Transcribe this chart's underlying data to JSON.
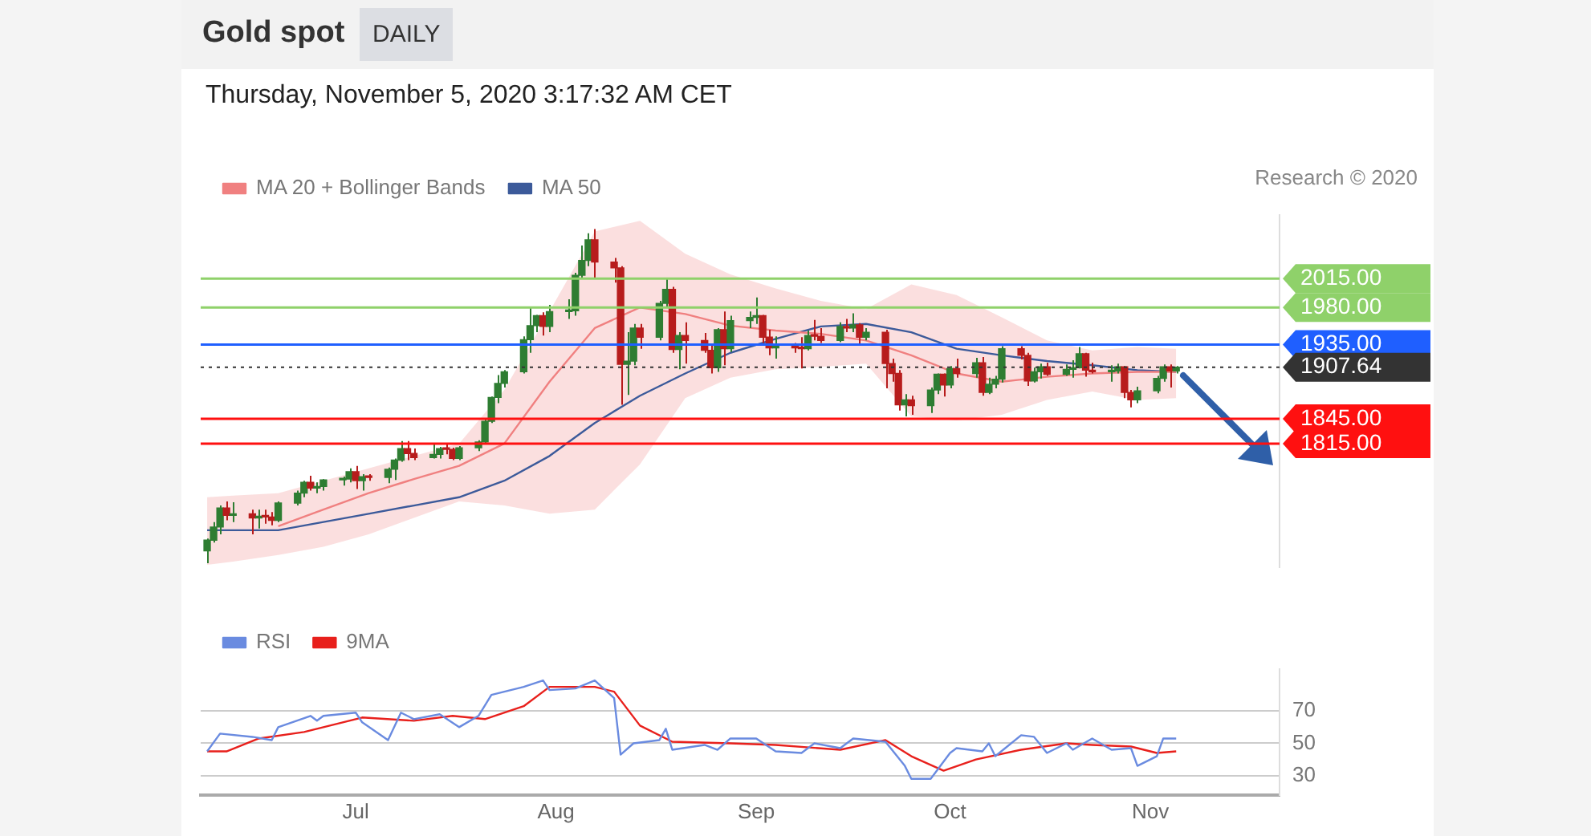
{
  "chart_data": [
    {
      "type": "candlestick",
      "title": "Gold spot",
      "subtitle": "DAILY",
      "annotations": [
        "Thursday, November 5, 2020 3:17:32 AM CET",
        "Research © 2020"
      ],
      "legend": "top left",
      "tick_labels": "y",
      "marker": "none",
      "yticks": [
        {
          "value": 2015,
          "label": "2015.00"
        },
        {
          "value": 1980,
          "label": "1980.00"
        },
        {
          "value": 1935,
          "label": "1935.00"
        },
        {
          "value": 1907.64,
          "label": "1907.64"
        },
        {
          "value": 1845,
          "label": "1845.00"
        },
        {
          "value": 1815,
          "label": "1815.00"
        }
      ],
      "xlim": [
        "2020-06-07",
        "2020-11-21"
      ],
      "ylim": [
        1665,
        2092
      ],
      "x": [
        "2020-06-08",
        "2020-06-09",
        "2020-06-10",
        "2020-06-11",
        "2020-06-12",
        "2020-06-15",
        "2020-06-16",
        "2020-06-17",
        "2020-06-18",
        "2020-06-19",
        "2020-06-22",
        "2020-06-23",
        "2020-06-24",
        "2020-06-25",
        "2020-06-26",
        "2020-06-29",
        "2020-06-30",
        "2020-07-01",
        "2020-07-02",
        "2020-07-03",
        "2020-07-06",
        "2020-07-07",
        "2020-07-08",
        "2020-07-09",
        "2020-07-10",
        "2020-07-13",
        "2020-07-14",
        "2020-07-15",
        "2020-07-16",
        "2020-07-17",
        "2020-07-20",
        "2020-07-21",
        "2020-07-22",
        "2020-07-23",
        "2020-07-24",
        "2020-07-27",
        "2020-07-28",
        "2020-07-29",
        "2020-07-30",
        "2020-07-31",
        "2020-08-03",
        "2020-08-04",
        "2020-08-05",
        "2020-08-06",
        "2020-08-07",
        "2020-08-10",
        "2020-08-11",
        "2020-08-12",
        "2020-08-13",
        "2020-08-14",
        "2020-08-17",
        "2020-08-18",
        "2020-08-19",
        "2020-08-20",
        "2020-08-21",
        "2020-08-24",
        "2020-08-25",
        "2020-08-26",
        "2020-08-27",
        "2020-08-28",
        "2020-08-31",
        "2020-09-01",
        "2020-09-02",
        "2020-09-03",
        "2020-09-04",
        "2020-09-07",
        "2020-09-08",
        "2020-09-09",
        "2020-09-10",
        "2020-09-11",
        "2020-09-14",
        "2020-09-15",
        "2020-09-16",
        "2020-09-17",
        "2020-09-18",
        "2020-09-21",
        "2020-09-22",
        "2020-09-23",
        "2020-09-24",
        "2020-09-25",
        "2020-09-28",
        "2020-09-29",
        "2020-09-30",
        "2020-10-01",
        "2020-10-02",
        "2020-10-05",
        "2020-10-06",
        "2020-10-07",
        "2020-10-08",
        "2020-10-09",
        "2020-10-12",
        "2020-10-13",
        "2020-10-14",
        "2020-10-15",
        "2020-10-16",
        "2020-10-19",
        "2020-10-20",
        "2020-10-21",
        "2020-10-22",
        "2020-10-23",
        "2020-10-26",
        "2020-10-27",
        "2020-10-28",
        "2020-10-29",
        "2020-10-30",
        "2020-11-02",
        "2020-11-03",
        "2020-11-04",
        "2020-11-05"
      ],
      "ohlc": [
        [
          1685,
          1700,
          1670,
          1698
        ],
        [
          1698,
          1720,
          1695,
          1714
        ],
        [
          1714,
          1740,
          1705,
          1737
        ],
        [
          1737,
          1745,
          1722,
          1728
        ],
        [
          1728,
          1744,
          1720,
          1730
        ],
        [
          1730,
          1735,
          1705,
          1725
        ],
        [
          1725,
          1735,
          1712,
          1727
        ],
        [
          1727,
          1735,
          1718,
          1726
        ],
        [
          1726,
          1732,
          1716,
          1722
        ],
        [
          1722,
          1745,
          1720,
          1743
        ],
        [
          1743,
          1758,
          1740,
          1755
        ],
        [
          1755,
          1770,
          1750,
          1768
        ],
        [
          1768,
          1776,
          1758,
          1761
        ],
        [
          1761,
          1768,
          1755,
          1763
        ],
        [
          1763,
          1772,
          1758,
          1771
        ],
        [
          1771,
          1775,
          1764,
          1772
        ],
        [
          1772,
          1785,
          1768,
          1781
        ],
        [
          1781,
          1788,
          1760,
          1770
        ],
        [
          1770,
          1778,
          1758,
          1775
        ],
        [
          1775,
          1778,
          1770,
          1774
        ],
        [
          1774,
          1786,
          1767,
          1784
        ],
        [
          1784,
          1797,
          1771,
          1795
        ],
        [
          1795,
          1818,
          1793,
          1809
        ],
        [
          1809,
          1818,
          1795,
          1803
        ],
        [
          1803,
          1809,
          1795,
          1798
        ],
        [
          1798,
          1815,
          1797,
          1802
        ],
        [
          1802,
          1811,
          1797,
          1809
        ],
        [
          1809,
          1814,
          1802,
          1808
        ],
        [
          1808,
          1810,
          1795,
          1797
        ],
        [
          1797,
          1812,
          1795,
          1810
        ],
        [
          1810,
          1819,
          1806,
          1817
        ],
        [
          1817,
          1844,
          1815,
          1842
        ],
        [
          1842,
          1872,
          1840,
          1871
        ],
        [
          1871,
          1898,
          1864,
          1888
        ],
        [
          1888,
          1904,
          1883,
          1902
        ],
        [
          1902,
          1945,
          1900,
          1941
        ],
        [
          1941,
          1981,
          1925,
          1958
        ],
        [
          1958,
          1971,
          1950,
          1970
        ],
        [
          1970,
          1974,
          1946,
          1957
        ],
        [
          1957,
          1983,
          1950,
          1975
        ],
        [
          1975,
          1990,
          1966,
          1976
        ],
        [
          1976,
          2022,
          1970,
          2019
        ],
        [
          2019,
          2055,
          2015,
          2037
        ],
        [
          2037,
          2070,
          2030,
          2062
        ],
        [
          2062,
          2075,
          2015,
          2035
        ],
        [
          2035,
          2040,
          2010,
          2028
        ],
        [
          2028,
          2030,
          1862,
          1911
        ],
        [
          1911,
          1950,
          1874,
          1915
        ],
        [
          1915,
          1960,
          1910,
          1955
        ],
        [
          1955,
          1960,
          1930,
          1944
        ],
        [
          1944,
          1988,
          1940,
          1985
        ],
        [
          1985,
          2015,
          1980,
          2002
        ],
        [
          2002,
          2005,
          1925,
          1929
        ],
        [
          1929,
          1950,
          1905,
          1946
        ],
        [
          1946,
          1962,
          1912,
          1940
        ],
        [
          1940,
          1949,
          1925,
          1928
        ],
        [
          1928,
          1935,
          1900,
          1907
        ],
        [
          1907,
          1955,
          1902,
          1953
        ],
        [
          1953,
          1975,
          1910,
          1930
        ],
        [
          1930,
          1970,
          1926,
          1964
        ],
        [
          1964,
          1975,
          1955,
          1968
        ],
        [
          1968,
          1992,
          1960,
          1970
        ],
        [
          1970,
          1971,
          1937,
          1944
        ],
        [
          1944,
          1953,
          1922,
          1931
        ],
        [
          1931,
          1945,
          1918,
          1934
        ],
        [
          1934,
          1937,
          1925,
          1931
        ],
        [
          1931,
          1944,
          1906,
          1930
        ],
        [
          1930,
          1952,
          1928,
          1946
        ],
        [
          1946,
          1965,
          1940,
          1945
        ],
        [
          1945,
          1955,
          1937,
          1940
        ],
        [
          1940,
          1962,
          1938,
          1957
        ],
        [
          1957,
          1966,
          1950,
          1955
        ],
        [
          1955,
          1973,
          1950,
          1959
        ],
        [
          1959,
          1961,
          1935,
          1944
        ],
        [
          1944,
          1955,
          1940,
          1950
        ],
        [
          1950,
          1953,
          1882,
          1912
        ],
        [
          1912,
          1918,
          1890,
          1900
        ],
        [
          1900,
          1904,
          1855,
          1862
        ],
        [
          1862,
          1875,
          1848,
          1868
        ],
        [
          1868,
          1873,
          1850,
          1861
        ],
        [
          1861,
          1883,
          1852,
          1880
        ],
        [
          1880,
          1900,
          1875,
          1899
        ],
        [
          1899,
          1900,
          1872,
          1886
        ],
        [
          1886,
          1909,
          1882,
          1906
        ],
        [
          1906,
          1918,
          1895,
          1900
        ],
        [
          1900,
          1919,
          1895,
          1913
        ],
        [
          1913,
          1920,
          1873,
          1877
        ],
        [
          1877,
          1895,
          1875,
          1887
        ],
        [
          1887,
          1897,
          1882,
          1893
        ],
        [
          1893,
          1933,
          1889,
          1930
        ],
        [
          1930,
          1933,
          1917,
          1922
        ],
        [
          1922,
          1925,
          1885,
          1891
        ],
        [
          1891,
          1907,
          1889,
          1902
        ],
        [
          1902,
          1912,
          1894,
          1908
        ],
        [
          1908,
          1913,
          1897,
          1899
        ],
        [
          1899,
          1911,
          1897,
          1905
        ],
        [
          1905,
          1916,
          1895,
          1907
        ],
        [
          1907,
          1932,
          1906,
          1924
        ],
        [
          1924,
          1925,
          1896,
          1904
        ],
        [
          1904,
          1913,
          1900,
          1902
        ],
        [
          1902,
          1910,
          1890,
          1903
        ],
        [
          1903,
          1912,
          1900,
          1908
        ],
        [
          1908,
          1909,
          1870,
          1877
        ],
        [
          1877,
          1880,
          1859,
          1868
        ],
        [
          1868,
          1884,
          1864,
          1879
        ],
        [
          1879,
          1897,
          1876,
          1894
        ],
        [
          1894,
          1911,
          1890,
          1908
        ],
        [
          1908,
          1911,
          1883,
          1903
        ],
        [
          1903,
          1909,
          1900,
          1907.64
        ]
      ],
      "colors": [
        "#2e7d32",
        "#2e7d32",
        "#2e7d32",
        "#b71c1c",
        "#2e7d32",
        "#b71c1c",
        "#2e7d32",
        "#b71c1c",
        "#b71c1c",
        "#2e7d32",
        "#2e7d32",
        "#2e7d32",
        "#b71c1c",
        "#2e7d32",
        "#2e7d32",
        "#2e7d32",
        "#2e7d32",
        "#b71c1c",
        "#2e7d32",
        "#b71c1c",
        "#2e7d32",
        "#2e7d32",
        "#2e7d32",
        "#b71c1c",
        "#b71c1c",
        "#2e7d32",
        "#2e7d32",
        "#b71c1c",
        "#b71c1c",
        "#2e7d32",
        "#2e7d32",
        "#2e7d32",
        "#2e7d32",
        "#2e7d32",
        "#2e7d32",
        "#2e7d32",
        "#2e7d32",
        "#2e7d32",
        "#b71c1c",
        "#2e7d32",
        "#2e7d32",
        "#2e7d32",
        "#2e7d32",
        "#2e7d32",
        "#b71c1c",
        "#b71c1c",
        "#b71c1c",
        "#2e7d32",
        "#2e7d32",
        "#b71c1c",
        "#2e7d32",
        "#2e7d32",
        "#b71c1c",
        "#2e7d32",
        "#b71c1c",
        "#b71c1c",
        "#b71c1c",
        "#2e7d32",
        "#b71c1c",
        "#2e7d32",
        "#2e7d32",
        "#2e7d32",
        "#b71c1c",
        "#b71c1c",
        "#2e7d32",
        "#b71c1c",
        "#b71c1c",
        "#2e7d32",
        "#b71c1c",
        "#b71c1c",
        "#2e7d32",
        "#b71c1c",
        "#2e7d32",
        "#b71c1c",
        "#2e7d32",
        "#b71c1c",
        "#b71c1c",
        "#b71c1c",
        "#2e7d32",
        "#b71c1c",
        "#2e7d32",
        "#2e7d32",
        "#b71c1c",
        "#2e7d32",
        "#b71c1c",
        "#2e7d32",
        "#b71c1c",
        "#2e7d32",
        "#2e7d32",
        "#2e7d32",
        "#b71c1c",
        "#b71c1c",
        "#2e7d32",
        "#2e7d32",
        "#b71c1c",
        "#2e7d32",
        "#2e7d32",
        "#2e7d32",
        "#b71c1c",
        "#b71c1c",
        "#2e7d32",
        "#2e7d32",
        "#b71c1c",
        "#b71c1c",
        "#2e7d32",
        "#2e7d32",
        "#2e7d32",
        "#b71c1c",
        "#2e7d32"
      ],
      "series": [
        {
          "name": "MA 20 + Bollinger Bands",
          "type": "line",
          "color": "#f08080",
          "x": [
            "2020-06-08",
            "2020-06-12",
            "2020-06-19",
            "2020-06-26",
            "2020-07-03",
            "2020-07-10",
            "2020-07-17",
            "2020-07-24",
            "2020-07-31",
            "2020-08-07",
            "2020-08-14",
            "2020-08-21",
            "2020-08-28",
            "2020-09-04",
            "2020-09-11",
            "2020-09-18",
            "2020-09-25",
            "2020-10-02",
            "2020-10-09",
            "2020-10-16",
            "2020-10-23",
            "2020-10-30",
            "2020-11-05"
          ],
          "values": [
            null,
            null,
            1715,
            1735,
            1755,
            1772,
            1788,
            1815,
            1890,
            1955,
            1980,
            1972,
            1958,
            1952,
            1948,
            1940,
            1922,
            1900,
            1890,
            1896,
            1900,
            1902,
            1902
          ],
          "lower": [
            1668,
            1672,
            1680,
            1690,
            1705,
            1725,
            1745,
            1740,
            1730,
            1735,
            1790,
            1870,
            1895,
            1905,
            1908,
            1912,
            1848,
            1843,
            1850,
            1868,
            1878,
            1868,
            1870
          ],
          "upper": [
            1750,
            1752,
            1755,
            1770,
            1785,
            1800,
            1815,
            1880,
            1975,
            2072,
            2085,
            2045,
            2020,
            2003,
            1988,
            1978,
            2008,
            1995,
            1968,
            1940,
            1928,
            1932,
            1930
          ]
        },
        {
          "name": "MA 50",
          "type": "line",
          "color": "#3c5a9a",
          "x": [
            "2020-06-08",
            "2020-06-19",
            "2020-07-03",
            "2020-07-10",
            "2020-07-17",
            "2020-07-24",
            "2020-07-31",
            "2020-08-07",
            "2020-08-14",
            "2020-08-21",
            "2020-08-28",
            "2020-09-04",
            "2020-09-11",
            "2020-09-18",
            "2020-09-25",
            "2020-10-02",
            "2020-10-09",
            "2020-10-16",
            "2020-10-23",
            "2020-10-30",
            "2020-11-05"
          ],
          "values": [
            1710,
            1710,
            1730,
            1740,
            1750,
            1770,
            1800,
            1840,
            1873,
            1900,
            1925,
            1942,
            1957,
            1960,
            1950,
            1930,
            1922,
            1915,
            1910,
            1904,
            1902
          ]
        }
      ],
      "ref_lines": [
        {
          "axis": "y",
          "value": 2015,
          "color": "#8fd16a"
        },
        {
          "axis": "y",
          "value": 1980,
          "color": "#8fd16a"
        },
        {
          "axis": "y",
          "value": 1935,
          "color": "#1f5fff"
        },
        {
          "axis": "y",
          "value": 1907.64,
          "color": "#333333",
          "line_style": "dotted"
        },
        {
          "axis": "y",
          "value": 1845,
          "color": "#ff1010"
        },
        {
          "axis": "y",
          "value": 1815,
          "color": "#ff1010"
        }
      ]
    },
    {
      "type": "line",
      "legend": "top left",
      "marker": "none",
      "grid": "y",
      "xlim": [
        "2020-06-07",
        "2020-11-21"
      ],
      "xticks": [
        {
          "value": "2020-07-01",
          "label": "Jul"
        },
        {
          "value": "2020-08-01",
          "label": "Aug"
        },
        {
          "value": "2020-09-01",
          "label": "Sep"
        },
        {
          "value": "2020-10-01",
          "label": "Oct"
        },
        {
          "value": "2020-11-01",
          "label": "Nov"
        }
      ],
      "ylim": [
        18,
        96
      ],
      "yticks": [
        30,
        50,
        70
      ],
      "series": [
        {
          "name": "RSI",
          "color": "#6a8be0",
          "x": [
            "2020-06-08",
            "2020-06-10",
            "2020-06-15",
            "2020-06-18",
            "2020-06-19",
            "2020-06-24",
            "2020-06-25",
            "2020-06-26",
            "2020-07-01",
            "2020-07-02",
            "2020-07-06",
            "2020-07-08",
            "2020-07-10",
            "2020-07-14",
            "2020-07-17",
            "2020-07-20",
            "2020-07-22",
            "2020-07-27",
            "2020-07-30",
            "2020-07-31",
            "2020-08-04",
            "2020-08-07",
            "2020-08-10",
            "2020-08-11",
            "2020-08-13",
            "2020-08-17",
            "2020-08-18",
            "2020-08-19",
            "2020-08-24",
            "2020-08-26",
            "2020-08-28",
            "2020-09-01",
            "2020-09-04",
            "2020-09-08",
            "2020-09-10",
            "2020-09-14",
            "2020-09-16",
            "2020-09-21",
            "2020-09-24",
            "2020-09-25",
            "2020-09-28",
            "2020-10-01",
            "2020-10-02",
            "2020-10-06",
            "2020-10-07",
            "2020-10-08",
            "2020-10-12",
            "2020-10-14",
            "2020-10-16",
            "2020-10-19",
            "2020-10-20",
            "2020-10-23",
            "2020-10-26",
            "2020-10-29",
            "2020-10-30",
            "2020-11-02",
            "2020-11-03",
            "2020-11-05"
          ],
          "values": [
            45,
            56,
            54,
            52,
            60,
            67,
            64,
            67,
            69,
            63,
            52,
            69,
            65,
            68,
            60,
            67,
            80,
            85,
            89,
            83,
            84,
            89,
            78,
            43,
            50,
            52,
            59,
            46,
            49,
            46,
            53,
            53,
            45,
            44,
            50,
            47,
            53,
            51,
            36,
            28,
            28,
            44,
            47,
            45,
            50,
            42,
            55,
            54,
            44,
            50,
            46,
            53,
            46,
            47,
            36,
            42,
            53,
            53
          ]
        },
        {
          "name": "9MA",
          "color": "#e8201c",
          "x": [
            "2020-06-08",
            "2020-06-11",
            "2020-06-16",
            "2020-06-23",
            "2020-07-02",
            "2020-07-10",
            "2020-07-16",
            "2020-07-21",
            "2020-07-27",
            "2020-07-31",
            "2020-08-07",
            "2020-08-10",
            "2020-08-14",
            "2020-08-19",
            "2020-08-28",
            "2020-09-04",
            "2020-09-14",
            "2020-09-21",
            "2020-09-25",
            "2020-09-30",
            "2020-10-05",
            "2020-10-12",
            "2020-10-19",
            "2020-10-23",
            "2020-10-29",
            "2020-11-02",
            "2020-11-05"
          ],
          "values": [
            45,
            45,
            53,
            57,
            66,
            64,
            67,
            65,
            73,
            85,
            85,
            82,
            61,
            51,
            50,
            49,
            46,
            52,
            42,
            33,
            40,
            46,
            50,
            49,
            48,
            44,
            45
          ]
        }
      ]
    }
  ]
}
